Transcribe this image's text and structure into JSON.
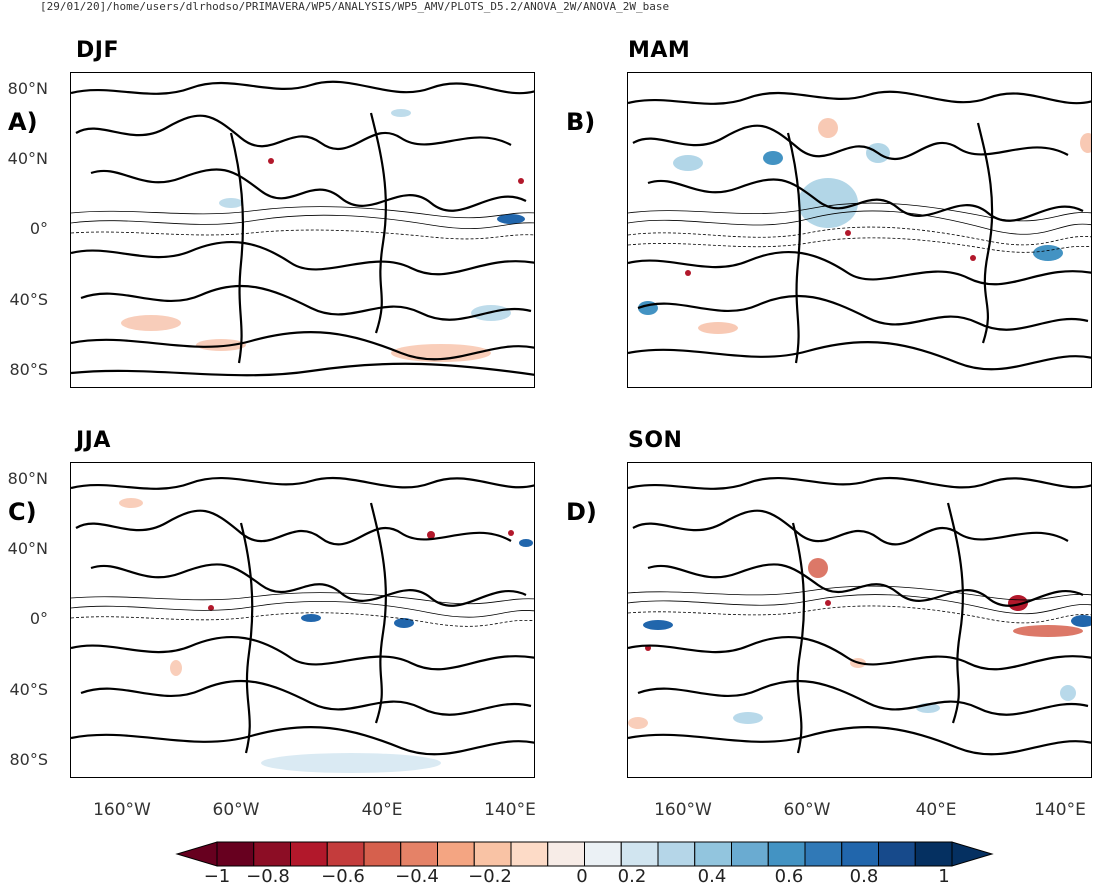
{
  "header": {
    "path": "[29/01/20]/home/users/dlrhodso/PRIMAVERA/WP5/ANALYSIS/WP5_AMV/PLOTS_D5.2/ANOVA_2W/ANOVA_2W_base"
  },
  "panels": [
    {
      "id": "djf",
      "title": "DJF",
      "letter": "A)"
    },
    {
      "id": "mam",
      "title": "MAM",
      "letter": "B)"
    },
    {
      "id": "jja",
      "title": "JJA",
      "letter": "C)"
    },
    {
      "id": "son",
      "title": "SON",
      "letter": "D)"
    }
  ],
  "axes": {
    "lat_labels": [
      "80°N",
      "40°N",
      "0°",
      "40°S",
      "80°S"
    ],
    "lon_labels": [
      "160°W",
      "60°W",
      "40°E",
      "140°E"
    ]
  },
  "colorbar": {
    "tick_labels": [
      "−1",
      "−0.8",
      "−0.6",
      "−0.4",
      "−0.2",
      "0",
      "0.2",
      "0.4",
      "0.6",
      "0.8",
      "1"
    ],
    "colors": [
      "#67001f",
      "#8c0d25",
      "#b2182b",
      "#c43c3c",
      "#d6604d",
      "#e58267",
      "#f4a582",
      "#f9c3a5",
      "#fddbc7",
      "#f7ece7",
      "#ebf1f5",
      "#d1e5f0",
      "#b5d6e8",
      "#92c5de",
      "#6aabd1",
      "#4393c3",
      "#3079b7",
      "#2166ac",
      "#174a8b",
      "#053061"
    ]
  }
}
